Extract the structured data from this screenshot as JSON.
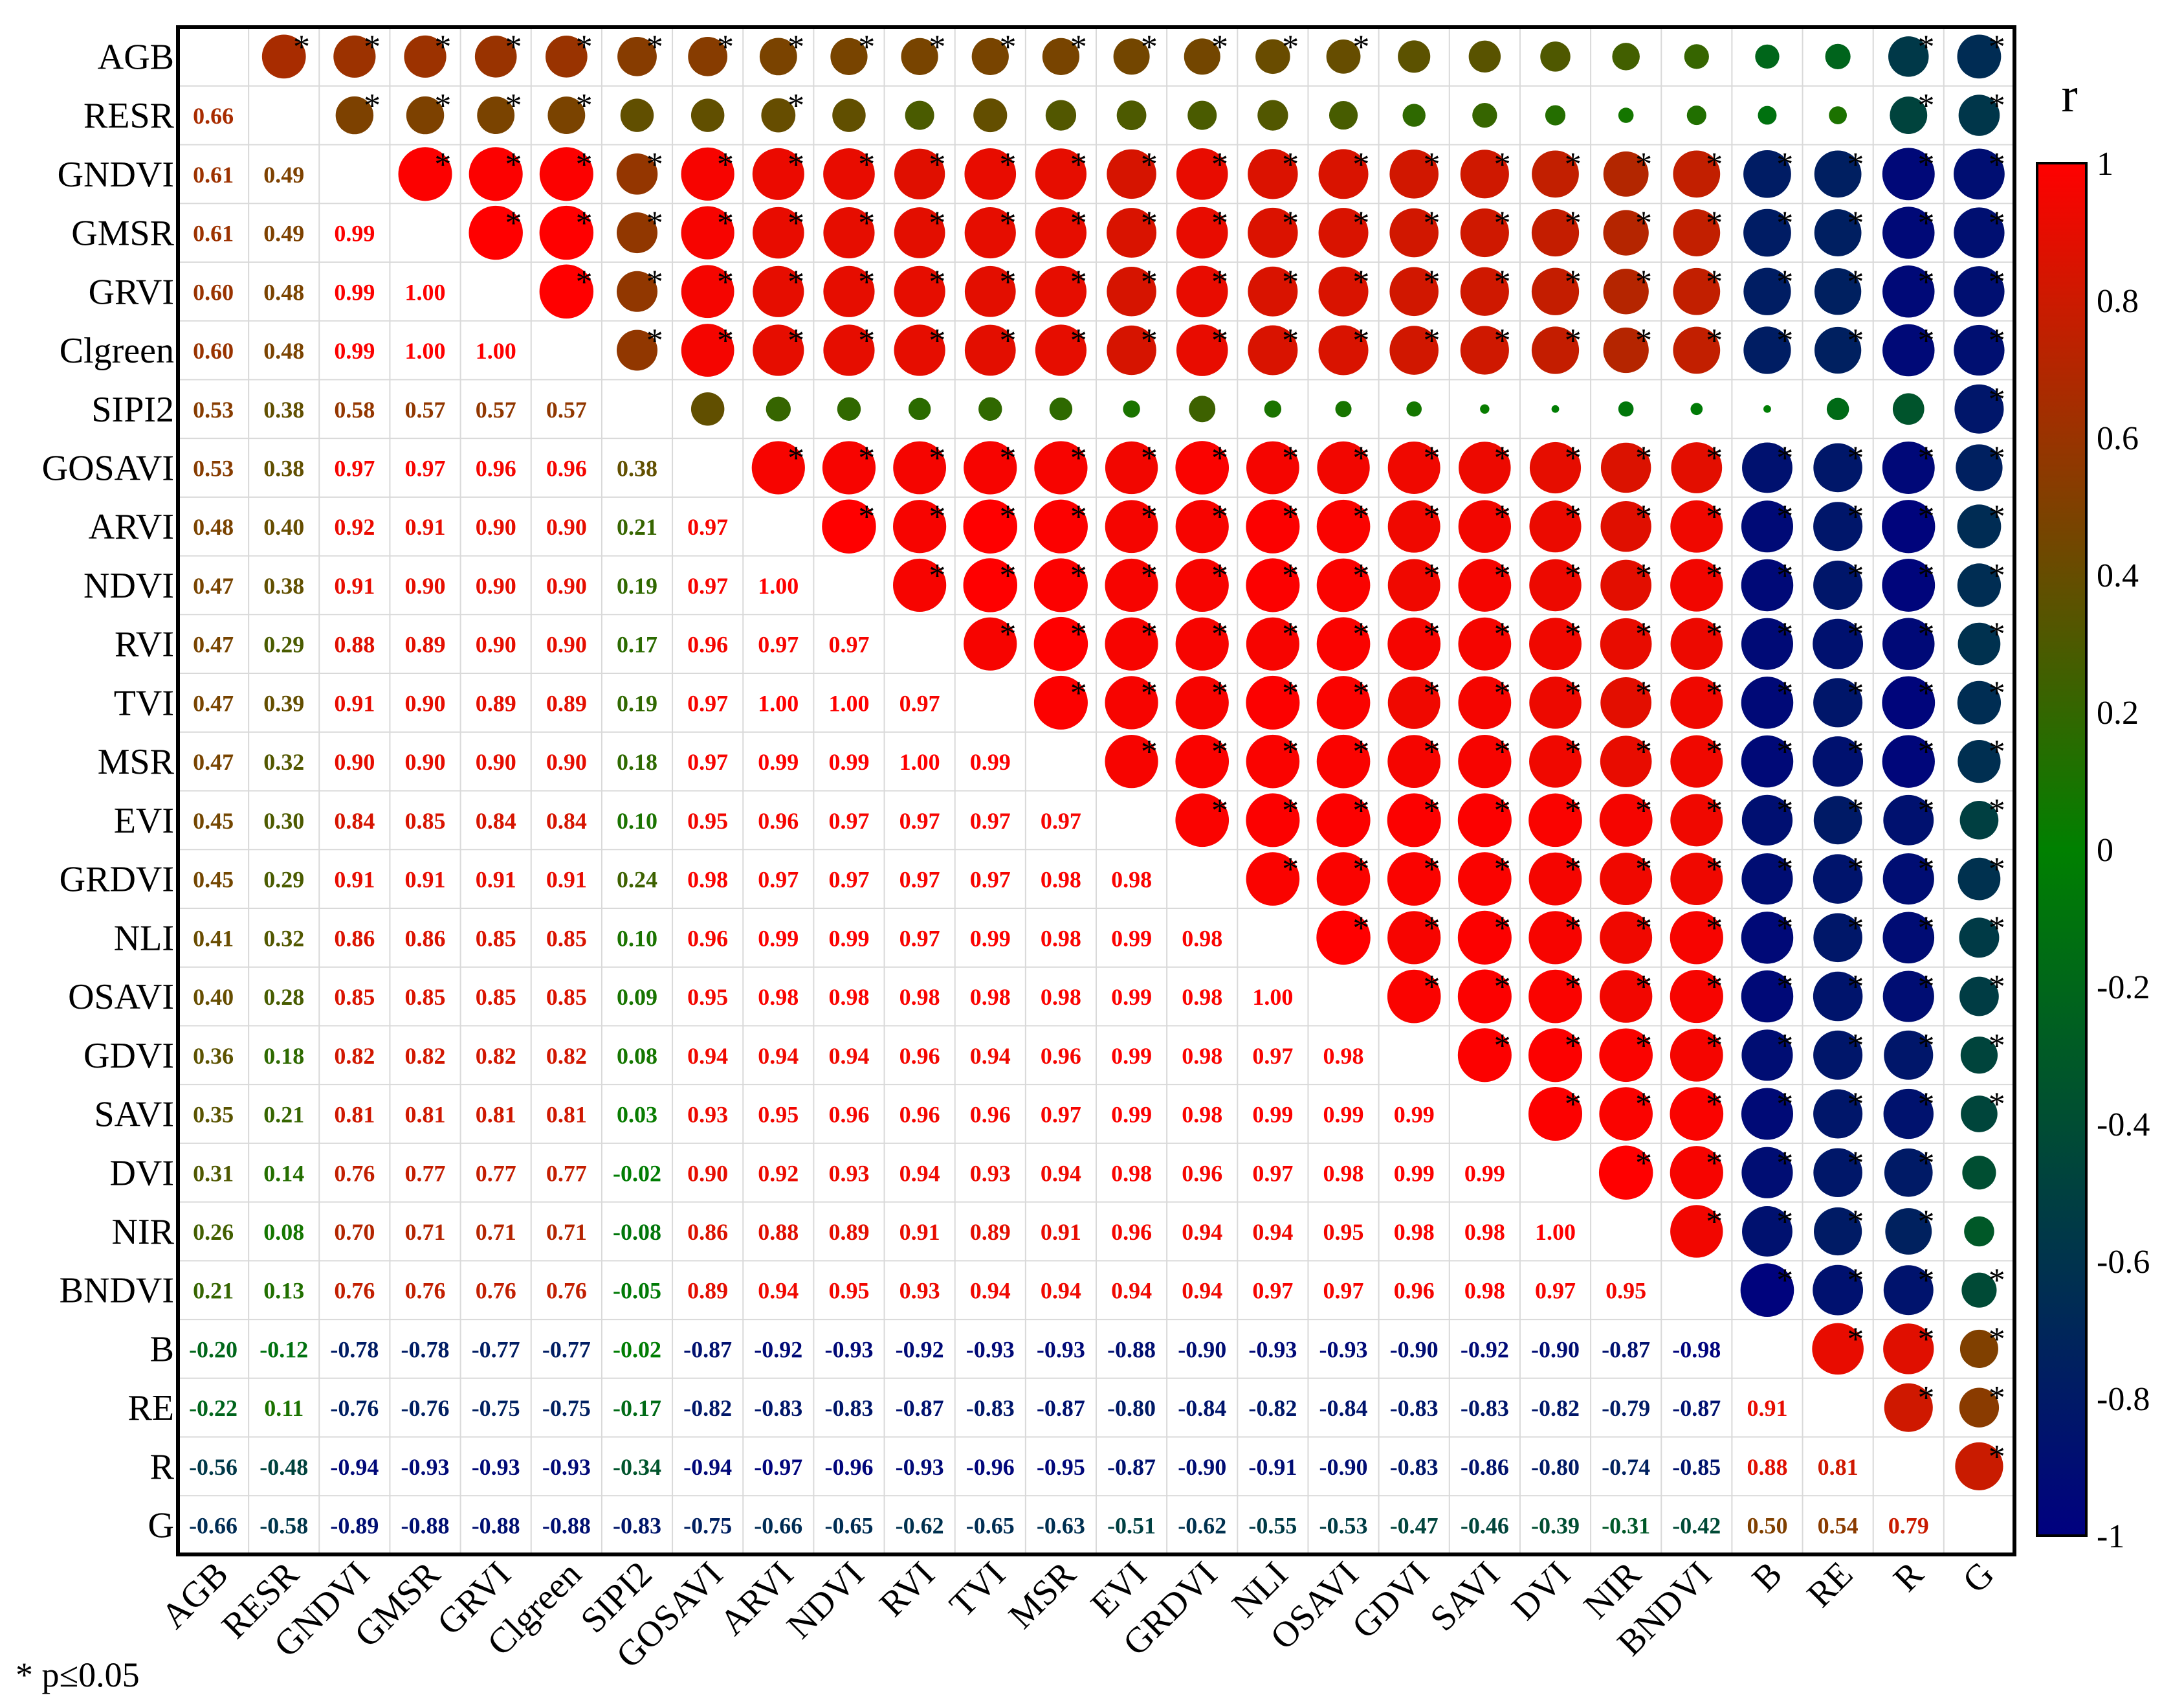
{
  "chart_data": {
    "type": "heatmap",
    "variables": [
      "AGB",
      "RESR",
      "GNDVI",
      "GMSR",
      "GRVI",
      "Clgreen",
      "SIPI2",
      "GOSAVI",
      "ARVI",
      "NDVI",
      "RVI",
      "TVI",
      "MSR",
      "EVI",
      "GRDVI",
      "NLI",
      "OSAVI",
      "GDVI",
      "SAVI",
      "DVI",
      "NIR",
      "BNDVI",
      "B",
      "RE",
      "R",
      "G"
    ],
    "lower_triangle_values": [
      [],
      [
        "0.66"
      ],
      [
        "0.61",
        "0.49"
      ],
      [
        "0.61",
        "0.49",
        "0.99"
      ],
      [
        "0.60",
        "0.48",
        "0.99",
        "1.00"
      ],
      [
        "0.60",
        "0.48",
        "0.99",
        "1.00",
        "1.00"
      ],
      [
        "0.53",
        "0.38",
        "0.58",
        "0.57",
        "0.57",
        "0.57"
      ],
      [
        "0.53",
        "0.38",
        "0.97",
        "0.97",
        "0.96",
        "0.96",
        "0.38"
      ],
      [
        "0.48",
        "0.40",
        "0.92",
        "0.91",
        "0.90",
        "0.90",
        "0.21",
        "0.97"
      ],
      [
        "0.47",
        "0.38",
        "0.91",
        "0.90",
        "0.90",
        "0.90",
        "0.19",
        "0.97",
        "1.00"
      ],
      [
        "0.47",
        "0.29",
        "0.88",
        "0.89",
        "0.90",
        "0.90",
        "0.17",
        "0.96",
        "0.97",
        "0.97"
      ],
      [
        "0.47",
        "0.39",
        "0.91",
        "0.90",
        "0.89",
        "0.89",
        "0.19",
        "0.97",
        "1.00",
        "1.00",
        "0.97"
      ],
      [
        "0.47",
        "0.32",
        "0.90",
        "0.90",
        "0.90",
        "0.90",
        "0.18",
        "0.97",
        "0.99",
        "0.99",
        "1.00",
        "0.99"
      ],
      [
        "0.45",
        "0.30",
        "0.84",
        "0.85",
        "0.84",
        "0.84",
        "0.10",
        "0.95",
        "0.96",
        "0.97",
        "0.97",
        "0.97",
        "0.97"
      ],
      [
        "0.45",
        "0.29",
        "0.91",
        "0.91",
        "0.91",
        "0.91",
        "0.24",
        "0.98",
        "0.97",
        "0.97",
        "0.97",
        "0.97",
        "0.98",
        "0.98"
      ],
      [
        "0.41",
        "0.32",
        "0.86",
        "0.86",
        "0.85",
        "0.85",
        "0.10",
        "0.96",
        "0.99",
        "0.99",
        "0.97",
        "0.99",
        "0.98",
        "0.99",
        "0.98"
      ],
      [
        "0.40",
        "0.28",
        "0.85",
        "0.85",
        "0.85",
        "0.85",
        "0.09",
        "0.95",
        "0.98",
        "0.98",
        "0.98",
        "0.98",
        "0.98",
        "0.99",
        "0.98",
        "1.00"
      ],
      [
        "0.36",
        "0.18",
        "0.82",
        "0.82",
        "0.82",
        "0.82",
        "0.08",
        "0.94",
        "0.94",
        "0.94",
        "0.96",
        "0.94",
        "0.96",
        "0.99",
        "0.98",
        "0.97",
        "0.98"
      ],
      [
        "0.35",
        "0.21",
        "0.81",
        "0.81",
        "0.81",
        "0.81",
        "0.03",
        "0.93",
        "0.95",
        "0.96",
        "0.96",
        "0.96",
        "0.97",
        "0.99",
        "0.98",
        "0.99",
        "0.99",
        "0.99"
      ],
      [
        "0.31",
        "0.14",
        "0.76",
        "0.77",
        "0.77",
        "0.77",
        "-0.02",
        "0.90",
        "0.92",
        "0.93",
        "0.94",
        "0.93",
        "0.94",
        "0.98",
        "0.96",
        "0.97",
        "0.98",
        "0.99",
        "0.99"
      ],
      [
        "0.26",
        "0.08",
        "0.70",
        "0.71",
        "0.71",
        "0.71",
        "-0.08",
        "0.86",
        "0.88",
        "0.89",
        "0.91",
        "0.89",
        "0.91",
        "0.96",
        "0.94",
        "0.94",
        "0.95",
        "0.98",
        "0.98",
        "1.00"
      ],
      [
        "0.21",
        "0.13",
        "0.76",
        "0.76",
        "0.76",
        "0.76",
        "-0.05",
        "0.89",
        "0.94",
        "0.95",
        "0.93",
        "0.94",
        "0.94",
        "0.94",
        "0.94",
        "0.97",
        "0.97",
        "0.96",
        "0.98",
        "0.97",
        "0.95"
      ],
      [
        "-0.20",
        "-0.12",
        "-0.78",
        "-0.78",
        "-0.77",
        "-0.77",
        "-0.02",
        "-0.87",
        "-0.92",
        "-0.93",
        "-0.92",
        "-0.93",
        "-0.93",
        "-0.88",
        "-0.90",
        "-0.93",
        "-0.93",
        "-0.90",
        "-0.92",
        "-0.90",
        "-0.87",
        "-0.98"
      ],
      [
        "-0.22",
        "0.11",
        "-0.76",
        "-0.76",
        "-0.75",
        "-0.75",
        "-0.17",
        "-0.82",
        "-0.83",
        "-0.83",
        "-0.87",
        "-0.83",
        "-0.87",
        "-0.80",
        "-0.84",
        "-0.82",
        "-0.84",
        "-0.83",
        "-0.83",
        "-0.82",
        "-0.79",
        "-0.87",
        "0.91"
      ],
      [
        "-0.56",
        "-0.48",
        "-0.94",
        "-0.93",
        "-0.93",
        "-0.93",
        "-0.34",
        "-0.94",
        "-0.97",
        "-0.96",
        "-0.93",
        "-0.96",
        "-0.95",
        "-0.87",
        "-0.90",
        "-0.91",
        "-0.90",
        "-0.83",
        "-0.86",
        "-0.80",
        "-0.74",
        "-0.85",
        "0.88",
        "0.81"
      ],
      [
        "-0.66",
        "-0.58",
        "-0.89",
        "-0.88",
        "-0.88",
        "-0.88",
        "-0.83",
        "-0.75",
        "-0.66",
        "-0.65",
        "-0.62",
        "-0.65",
        "-0.63",
        "-0.51",
        "-0.62",
        "-0.55",
        "-0.53",
        "-0.47",
        "-0.46",
        "-0.39",
        "-0.31",
        "-0.42",
        "0.50",
        "0.54",
        "0.79"
      ]
    ],
    "upper_triangle": "circles whose area and colour encode r; asterisk marks significance",
    "significance_marker": "*",
    "significance_note": "* p≤0.05",
    "colorbar": {
      "title": "r",
      "range": [
        -1,
        1
      ],
      "ticks": [
        "1",
        "0.8",
        "0.6",
        "0.4",
        "0.2",
        "0",
        "-0.2",
        "-0.4",
        "-0.6",
        "-0.8",
        "-1"
      ],
      "colors": [
        "#000080",
        "#008000",
        "#ff0000"
      ]
    }
  }
}
